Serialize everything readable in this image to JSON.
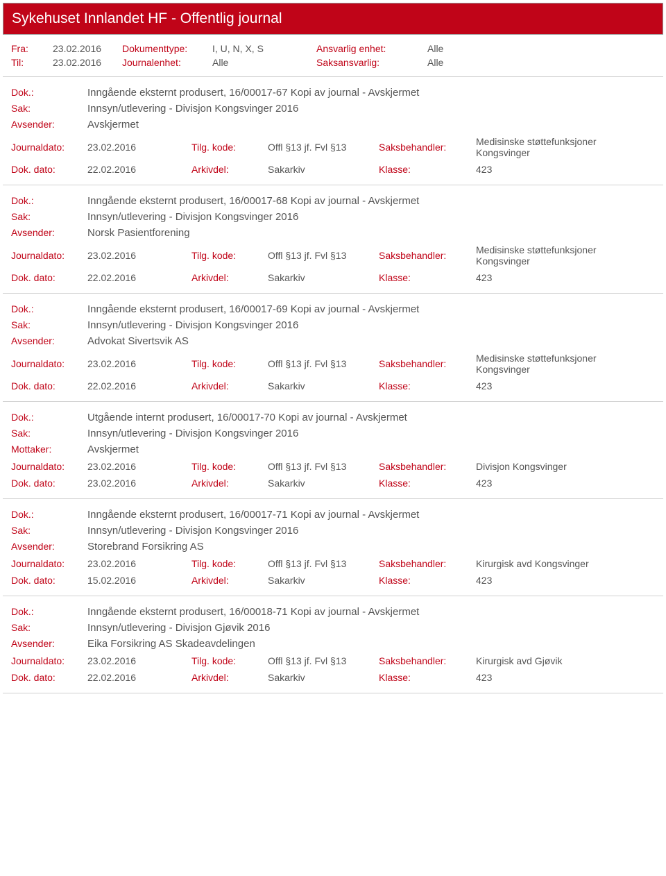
{
  "page_title": "Sykehuset Innlandet HF - Offentlig journal",
  "filters": {
    "fra_label": "Fra:",
    "fra_value": "23.02.2016",
    "til_label": "Til:",
    "til_value": "23.02.2016",
    "doktype_label": "Dokumenttype:",
    "doktype_value": "I, U, N, X, S",
    "journalenhet_label": "Journalenhet:",
    "journalenhet_value": "Alle",
    "ansvarlig_label": "Ansvarlig enhet:",
    "ansvarlig_value": "Alle",
    "saksansvarlig_label": "Saksansvarlig:",
    "saksansvarlig_value": "Alle"
  },
  "labels": {
    "dok": "Dok.:",
    "sak": "Sak:",
    "avsender": "Avsender:",
    "mottaker": "Mottaker:",
    "journaldato": "Journaldato:",
    "tilg_kode": "Tilg. kode:",
    "saksbehandler": "Saksbehandler:",
    "dok_dato": "Dok. dato:",
    "arkivdel": "Arkivdel:",
    "klasse": "Klasse:"
  },
  "common": {
    "journaldato_val": "23.02.2016",
    "tilg_val": "Offl §13 jf. Fvl §13",
    "arkivdel_val": "Sakarkiv",
    "klasse_val": "423"
  },
  "entries": [
    {
      "dok": "Inngående eksternt produsert, 16/00017-67 Kopi av journal - Avskjermet",
      "sak": "Innsyn/utlevering - Divisjon Kongsvinger 2016",
      "party_label": "Avsender:",
      "party": "Avskjermet",
      "saksbehandler": "Medisinske støttefunksjoner Kongsvinger",
      "dokdato": "22.02.2016"
    },
    {
      "dok": "Inngående eksternt produsert, 16/00017-68 Kopi av journal - Avskjermet",
      "sak": "Innsyn/utlevering - Divisjon Kongsvinger 2016",
      "party_label": "Avsender:",
      "party": "Norsk Pasientforening",
      "saksbehandler": "Medisinske støttefunksjoner Kongsvinger",
      "dokdato": "22.02.2016"
    },
    {
      "dok": "Inngående eksternt produsert, 16/00017-69 Kopi av journal - Avskjermet",
      "sak": "Innsyn/utlevering - Divisjon Kongsvinger 2016",
      "party_label": "Avsender:",
      "party": "Advokat Sivertsvik AS",
      "saksbehandler": "Medisinske støttefunksjoner Kongsvinger",
      "dokdato": "22.02.2016"
    },
    {
      "dok": "Utgående internt produsert, 16/00017-70 Kopi av journal - Avskjermet",
      "sak": "Innsyn/utlevering - Divisjon Kongsvinger 2016",
      "party_label": "Mottaker:",
      "party": "Avskjermet",
      "saksbehandler": "Divisjon Kongsvinger",
      "dokdato": "23.02.2016"
    },
    {
      "dok": "Inngående eksternt produsert, 16/00017-71 Kopi av journal - Avskjermet",
      "sak": "Innsyn/utlevering - Divisjon Kongsvinger 2016",
      "party_label": "Avsender:",
      "party": "Storebrand Forsikring AS",
      "saksbehandler": "Kirurgisk avd Kongsvinger",
      "dokdato": "15.02.2016"
    },
    {
      "dok": "Inngående eksternt produsert, 16/00018-71 Kopi av journal - Avskjermet",
      "sak": "Innsyn/utlevering - Divisjon Gjøvik 2016",
      "party_label": "Avsender:",
      "party": "Eika Forsikring AS Skadeavdelingen",
      "saksbehandler": "Kirurgisk avd Gjøvik",
      "dokdato": "22.02.2016"
    }
  ]
}
